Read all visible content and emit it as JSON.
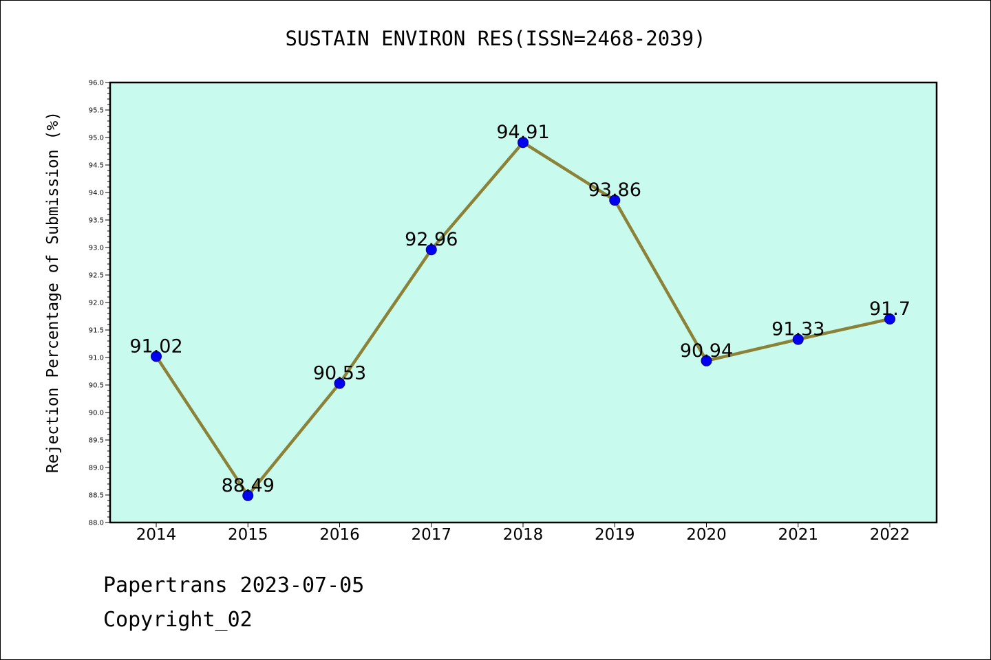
{
  "chart_data": {
    "type": "line",
    "title": "SUSTAIN ENVIRON RES(ISSN=2468-2039)",
    "ylabel": "Rejection Percentage of Submission (%)",
    "xlabel": "",
    "categories": [
      "2014",
      "2015",
      "2016",
      "2017",
      "2018",
      "2019",
      "2020",
      "2021",
      "2022"
    ],
    "series": [
      {
        "values": [
          91.02,
          88.49,
          90.53,
          92.96,
          94.91,
          93.86,
          90.94,
          91.33,
          91.7
        ],
        "labels": [
          "91.02",
          "88.49",
          "90.53",
          "92.96",
          "94.91",
          "93.86",
          "90.94",
          "91.33",
          "91.7"
        ]
      }
    ],
    "ylim": [
      88.0,
      96.0
    ],
    "yticks": [
      "88.0",
      "88.5",
      "89.0",
      "89.5",
      "90.0",
      "90.5",
      "91.0",
      "91.5",
      "92.0",
      "92.5",
      "93.0",
      "93.5",
      "94.0",
      "94.5",
      "95.0",
      "95.5",
      "96.0"
    ],
    "grid": false,
    "colors": {
      "plot_background": "#c8fbee",
      "line": "#8b8238",
      "marker": "#0000ee",
      "marker_edge": "#00008b"
    }
  },
  "footer": {
    "credit": "Papertrans 2023-07-05",
    "copyright": "Copyright_02"
  }
}
